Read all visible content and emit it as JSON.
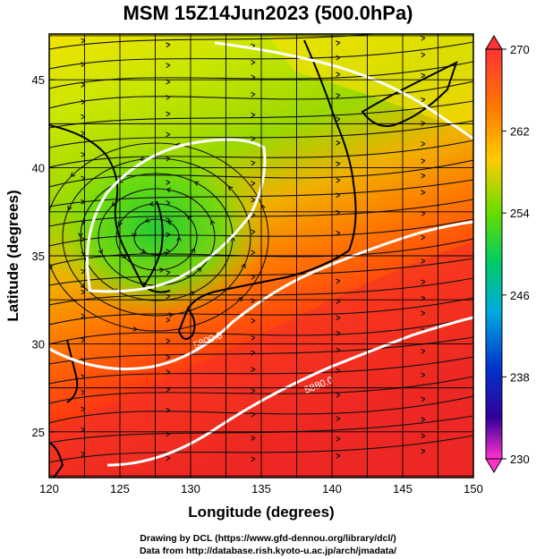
{
  "title": "MSM 15Z14Jun2023 (500.0hPa)",
  "map": {
    "xlabel": "Longitude (degrees)",
    "ylabel": "Latitude  (degrees)",
    "x_ticks": [
      "120",
      "125",
      "130",
      "135",
      "140",
      "145",
      "150"
    ],
    "y_ticks": [
      "25",
      "30",
      "35",
      "40",
      "45"
    ],
    "xlim": [
      120,
      150
    ],
    "ylim": [
      22.4,
      47.6
    ],
    "contour_labels": [
      "5800.0",
      "5880.0"
    ]
  },
  "colorbar": {
    "labels": [
      "270",
      "262",
      "254",
      "246",
      "238",
      "230"
    ],
    "range": [
      230,
      270
    ],
    "colors": [
      "#ff3333",
      "#ff7700",
      "#ffcc00",
      "#66dd00",
      "#00cc66",
      "#00aadd",
      "#0033cc",
      "#330099",
      "#ff33cc"
    ]
  },
  "footer": {
    "line1": "Drawing by DCL (https://www.gfd-dennou.org/library/dcl/)",
    "line2": "Data from http://database.rish.kyoto-u.ac.jp/arch/jmadata/"
  }
}
